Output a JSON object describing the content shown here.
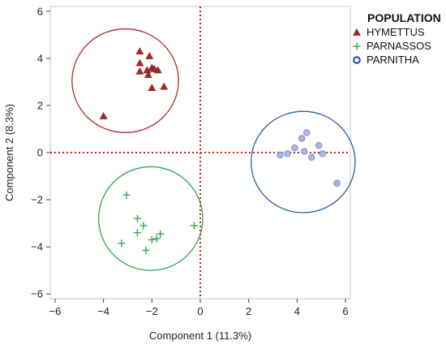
{
  "chart_data": {
    "type": "scatter",
    "xlabel": "Component 1 (11.3%)",
    "ylabel": "Component 2 (8.3%)",
    "xlim": [
      -6.2,
      6.2
    ],
    "ylim": [
      -6.2,
      6.2
    ],
    "xticks": [
      -6,
      -4,
      -2,
      0,
      2,
      4,
      6
    ],
    "yticks": [
      -6,
      -4,
      -2,
      0,
      2,
      4,
      6
    ],
    "grid": false,
    "reference_lines": {
      "x": 0,
      "y": 0,
      "style": "dotted",
      "color": "#cc2222"
    },
    "legend": {
      "title": "POPULATION",
      "placement": "outside-top-right"
    },
    "series": [
      {
        "name": "HYMETTUS",
        "marker": "triangle",
        "color": "#a82828",
        "points": [
          [
            -2.5,
            4.3
          ],
          [
            -2.1,
            4.1
          ],
          [
            -2.5,
            3.8
          ],
          [
            -2.0,
            3.6
          ],
          [
            -1.9,
            3.55
          ],
          [
            -2.2,
            3.5
          ],
          [
            -1.75,
            3.5
          ],
          [
            -2.5,
            3.45
          ],
          [
            -2.15,
            3.3
          ],
          [
            -1.5,
            2.8
          ],
          [
            -2.0,
            2.75
          ],
          [
            -4.0,
            1.55
          ]
        ],
        "ellipse": {
          "cx": -3.1,
          "cy": 3.05,
          "rx": 2.2,
          "ry": 2.2,
          "color": "#b22a2a"
        }
      },
      {
        "name": "PARNASSOS",
        "marker": "plus",
        "color": "#3aa64a",
        "points": [
          [
            -3.05,
            -1.8
          ],
          [
            -2.6,
            -2.8
          ],
          [
            -2.35,
            -3.1
          ],
          [
            -2.6,
            -3.4
          ],
          [
            -1.65,
            -3.45
          ],
          [
            -1.8,
            -3.65
          ],
          [
            -2.0,
            -3.7
          ],
          [
            -3.25,
            -3.85
          ],
          [
            -2.25,
            -4.15
          ],
          [
            -0.25,
            -3.1
          ]
        ],
        "ellipse": {
          "cx": -2.05,
          "cy": -2.8,
          "rx": 2.15,
          "ry": 2.2,
          "color": "#2aa84a"
        }
      },
      {
        "name": "PARNITHA",
        "marker": "circle",
        "color": "#a9b7e3",
        "points": [
          [
            4.4,
            0.85
          ],
          [
            4.2,
            0.6
          ],
          [
            3.9,
            0.2
          ],
          [
            4.9,
            0.3
          ],
          [
            4.3,
            0.05
          ],
          [
            3.6,
            -0.05
          ],
          [
            5.05,
            -0.05
          ],
          [
            3.3,
            -0.1
          ],
          [
            4.6,
            -0.2
          ],
          [
            5.65,
            -1.3
          ]
        ],
        "ellipse": {
          "cx": 4.25,
          "cy": -0.4,
          "rx": 2.15,
          "ry": 2.15,
          "color": "#2d5f98"
        }
      }
    ]
  }
}
